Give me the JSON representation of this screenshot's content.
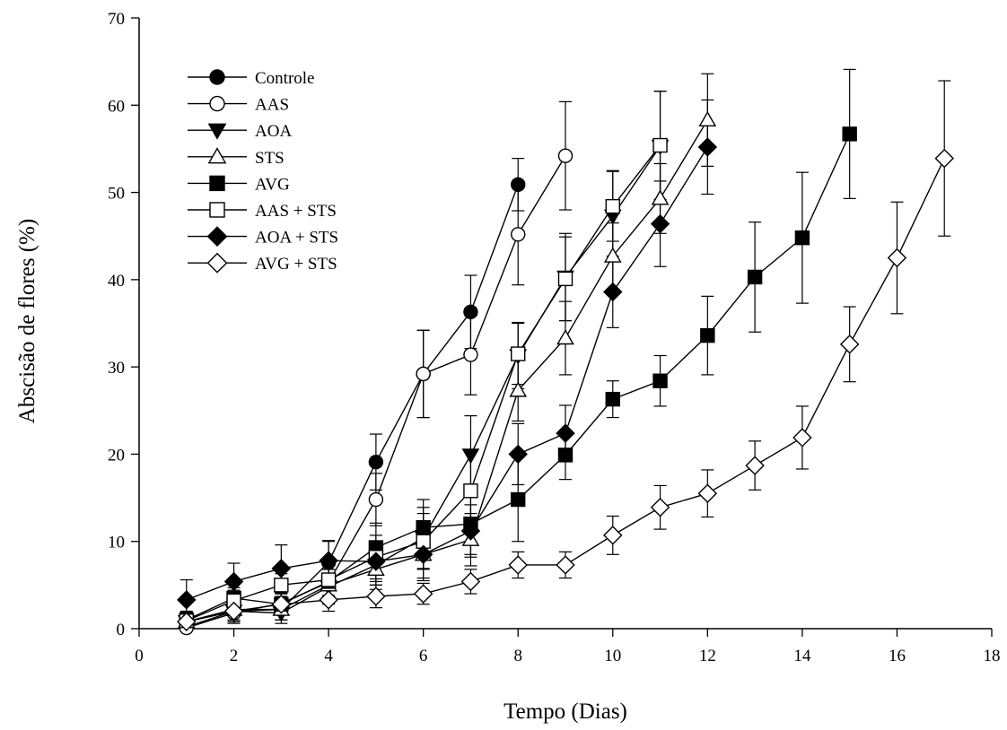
{
  "chart_data": {
    "type": "line",
    "xlabel": "Tempo (Dias)",
    "ylabel": "Abscisão de flores (%)",
    "xlim": [
      0,
      18
    ],
    "ylim": [
      0,
      70
    ],
    "xticks": [
      0,
      2,
      4,
      6,
      8,
      10,
      12,
      14,
      16,
      18
    ],
    "yticks": [
      0,
      10,
      20,
      30,
      40,
      50,
      60,
      70
    ],
    "grid": false,
    "legend_position": "top-left",
    "series": [
      {
        "name": "Controle",
        "marker": "circle",
        "filled": true,
        "x": [
          1,
          2,
          3,
          4,
          5,
          6,
          7,
          8
        ],
        "y": [
          0.2,
          2.0,
          2.2,
          7.6,
          19.1,
          29.2,
          36.3,
          50.9
        ],
        "err": [
          1.0,
          1.2,
          1.2,
          2.5,
          3.2,
          5.0,
          4.2,
          3.0
        ]
      },
      {
        "name": "AAS",
        "marker": "circle",
        "filled": false,
        "x": [
          1,
          2,
          3,
          4,
          5,
          6,
          7,
          8,
          9
        ],
        "y": [
          0.1,
          1.8,
          2.9,
          5.3,
          14.8,
          29.2,
          31.4,
          45.2,
          54.2
        ],
        "err": [
          1.0,
          1.2,
          1.2,
          1.5,
          3.0,
          5.0,
          4.6,
          5.8,
          6.2
        ]
      },
      {
        "name": "AOA",
        "marker": "triangle-down",
        "filled": true,
        "x": [
          1,
          2,
          3,
          4,
          5,
          6,
          7,
          8,
          9,
          10,
          11
        ],
        "y": [
          0.8,
          2.0,
          1.8,
          4.8,
          7.3,
          10.4,
          19.9,
          31.3,
          40.3,
          47.3,
          55.3
        ],
        "err": [
          1.0,
          1.2,
          1.2,
          2.0,
          2.3,
          3.5,
          4.5,
          3.8,
          5.0,
          5.2,
          6.3
        ]
      },
      {
        "name": "STS",
        "marker": "triangle-up",
        "filled": false,
        "x": [
          1,
          2,
          3,
          4,
          5,
          6,
          7,
          8,
          9,
          10,
          11,
          12
        ],
        "y": [
          0.8,
          2.2,
          2.2,
          5.0,
          6.8,
          8.5,
          10.2,
          27.3,
          33.3,
          42.7,
          49.3,
          58.3
        ],
        "err": [
          1.0,
          1.2,
          1.2,
          1.8,
          2.3,
          3.0,
          3.0,
          3.5,
          4.2,
          3.8,
          4.0,
          5.3
        ]
      },
      {
        "name": "AVG",
        "marker": "square",
        "filled": true,
        "x": [
          1,
          2,
          3,
          4,
          5,
          6,
          7,
          8,
          9,
          10,
          11,
          12,
          13,
          14,
          15
        ],
        "y": [
          1.0,
          3.5,
          2.8,
          5.4,
          9.3,
          11.6,
          12.0,
          14.8,
          19.9,
          26.3,
          28.4,
          33.6,
          40.3,
          44.8,
          56.7
        ],
        "err": [
          1.0,
          1.2,
          1.2,
          1.8,
          2.8,
          3.2,
          3.5,
          4.8,
          2.8,
          2.1,
          2.9,
          4.5,
          6.3,
          7.5,
          7.4
        ]
      },
      {
        "name": "AAS + STS",
        "marker": "square",
        "filled": false,
        "x": [
          1,
          2,
          3,
          4,
          5,
          6,
          7,
          8,
          9,
          10,
          11
        ],
        "y": [
          0.9,
          3.2,
          5.0,
          5.6,
          8.2,
          10.0,
          15.8,
          31.5,
          40.1,
          48.4,
          55.4
        ],
        "err": [
          1.0,
          1.2,
          1.3,
          1.8,
          2.5,
          3.2,
          4.4,
          3.5,
          4.8,
          4.0,
          6.2
        ]
      },
      {
        "name": "AOA + STS",
        "marker": "diamond",
        "filled": true,
        "x": [
          1,
          2,
          3,
          4,
          5,
          6,
          7,
          8,
          9,
          10,
          11,
          12
        ],
        "y": [
          3.3,
          5.4,
          6.9,
          7.8,
          7.7,
          8.5,
          11.2,
          20.0,
          22.4,
          38.6,
          46.4,
          55.2
        ],
        "err": [
          2.3,
          2.1,
          2.7,
          2.2,
          2.3,
          2.7,
          3.0,
          3.5,
          3.2,
          4.1,
          4.9,
          5.4
        ]
      },
      {
        "name": "AVG + STS",
        "marker": "diamond",
        "filled": false,
        "x": [
          1,
          2,
          3,
          4,
          5,
          6,
          7,
          8,
          9,
          10,
          11,
          12,
          13,
          14,
          15,
          16,
          17
        ],
        "y": [
          0.8,
          2.0,
          2.8,
          3.3,
          3.7,
          4.0,
          5.4,
          7.3,
          7.3,
          10.7,
          13.9,
          15.5,
          18.7,
          21.9,
          32.6,
          42.5,
          53.9
        ],
        "err": [
          1.0,
          1.2,
          1.2,
          1.3,
          1.3,
          1.2,
          1.4,
          1.5,
          1.5,
          2.2,
          2.5,
          2.7,
          2.8,
          3.6,
          4.3,
          6.4,
          8.9
        ]
      }
    ]
  }
}
